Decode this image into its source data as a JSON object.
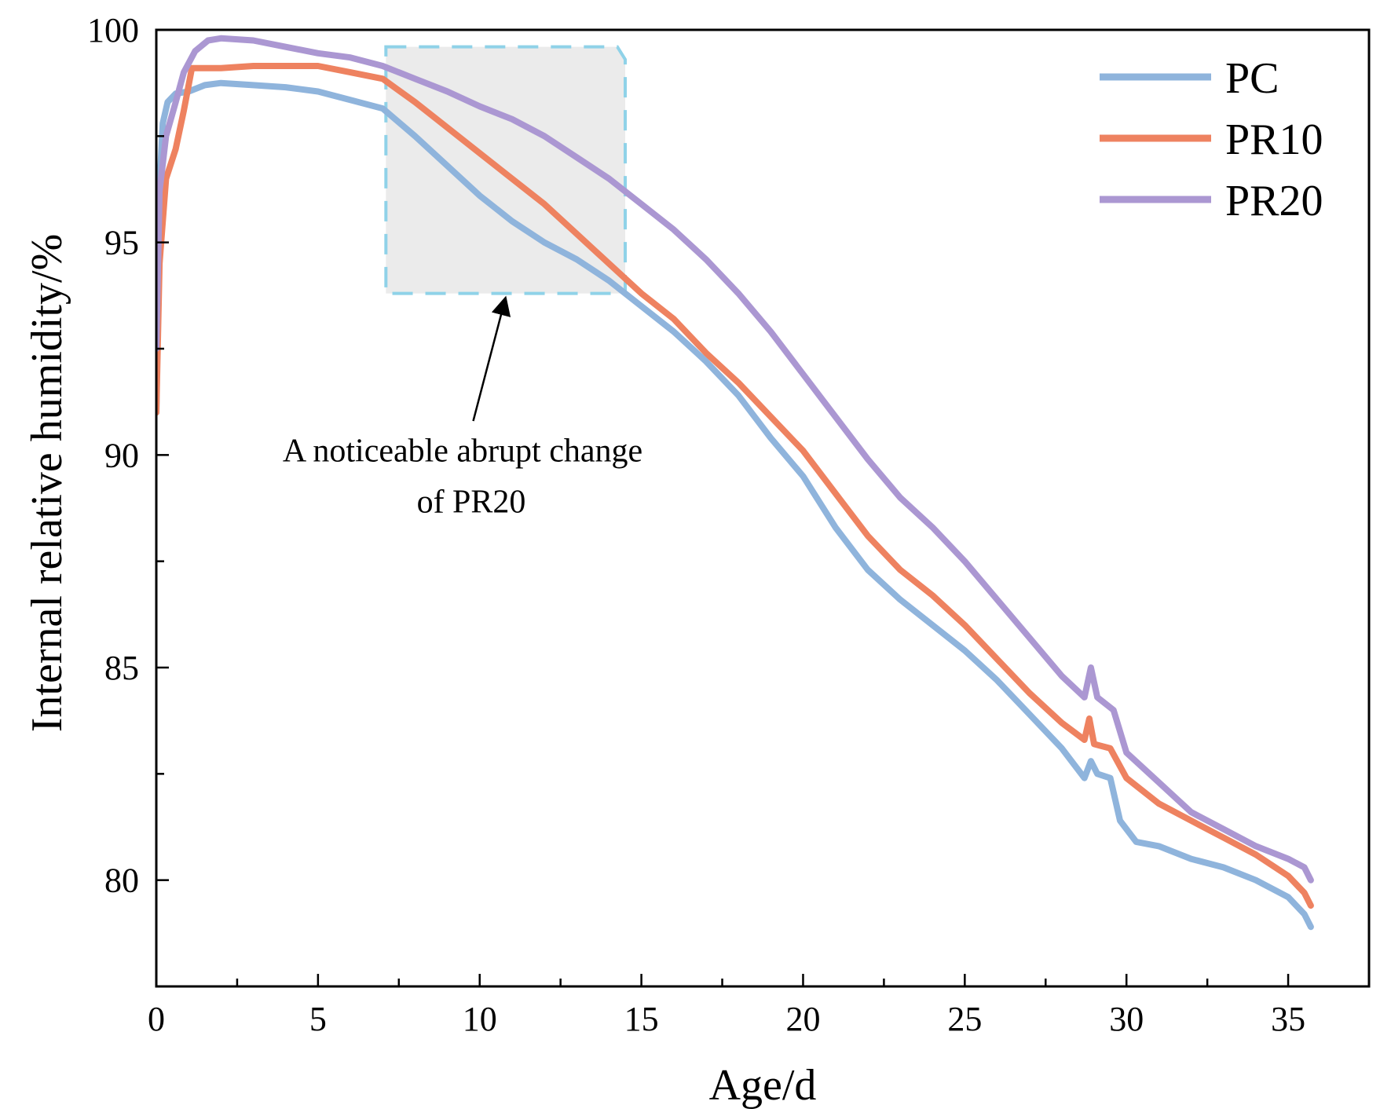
{
  "chart_data": {
    "type": "line",
    "xlabel": "Age/d",
    "ylabel": "Internal relative humidity/%",
    "xlim": [
      0,
      37.5
    ],
    "ylim": [
      77.5,
      100
    ],
    "xticks": [
      0,
      5,
      10,
      15,
      20,
      25,
      30,
      35
    ],
    "yticks": [
      80,
      85,
      90,
      95,
      100
    ],
    "grid": false,
    "legend_position": "top-right",
    "series": [
      {
        "name": "PC",
        "color": "#8fb4dc",
        "points": [
          [
            0,
            91
          ],
          [
            0.08,
            96
          ],
          [
            0.2,
            97.8
          ],
          [
            0.35,
            98.3
          ],
          [
            0.6,
            98.5
          ],
          [
            1,
            98.55
          ],
          [
            1.5,
            98.7
          ],
          [
            2,
            98.75
          ],
          [
            3,
            98.7
          ],
          [
            4,
            98.65
          ],
          [
            5,
            98.55
          ],
          [
            6,
            98.35
          ],
          [
            7,
            98.15
          ],
          [
            8,
            97.5
          ],
          [
            9,
            96.8
          ],
          [
            10,
            96.1
          ],
          [
            11,
            95.5
          ],
          [
            12,
            95
          ],
          [
            13,
            94.6
          ],
          [
            14,
            94.1
          ],
          [
            15,
            93.5
          ],
          [
            16,
            92.9
          ],
          [
            17,
            92.2
          ],
          [
            18,
            91.4
          ],
          [
            19,
            90.4
          ],
          [
            20,
            89.5
          ],
          [
            21,
            88.3
          ],
          [
            22,
            87.3
          ],
          [
            23,
            86.6
          ],
          [
            24,
            86
          ],
          [
            25,
            85.4
          ],
          [
            26,
            84.7
          ],
          [
            27,
            83.9
          ],
          [
            28,
            83.1
          ],
          [
            28.7,
            82.4
          ],
          [
            28.9,
            82.8
          ],
          [
            29.1,
            82.5
          ],
          [
            29.5,
            82.4
          ],
          [
            29.8,
            81.4
          ],
          [
            30.3,
            80.9
          ],
          [
            31,
            80.8
          ],
          [
            32,
            80.5
          ],
          [
            33,
            80.3
          ],
          [
            34,
            80
          ],
          [
            35,
            79.6
          ],
          [
            35.5,
            79.2
          ],
          [
            35.7,
            78.9
          ]
        ]
      },
      {
        "name": "PR10",
        "color": "#ee8260",
        "points": [
          [
            0,
            91
          ],
          [
            0.1,
            94.5
          ],
          [
            0.3,
            96.5
          ],
          [
            0.6,
            97.2
          ],
          [
            0.85,
            98.1
          ],
          [
            1.1,
            99.1
          ],
          [
            2,
            99.1
          ],
          [
            3,
            99.15
          ],
          [
            4,
            99.15
          ],
          [
            5,
            99.15
          ],
          [
            6,
            99
          ],
          [
            7,
            98.85
          ],
          [
            8,
            98.3
          ],
          [
            9,
            97.7
          ],
          [
            10,
            97.1
          ],
          [
            11,
            96.5
          ],
          [
            12,
            95.9
          ],
          [
            13,
            95.2
          ],
          [
            14,
            94.5
          ],
          [
            15,
            93.8
          ],
          [
            16,
            93.2
          ],
          [
            17,
            92.4
          ],
          [
            18,
            91.7
          ],
          [
            19,
            90.9
          ],
          [
            20,
            90.1
          ],
          [
            21,
            89.1
          ],
          [
            22,
            88.1
          ],
          [
            23,
            87.3
          ],
          [
            24,
            86.7
          ],
          [
            25,
            86
          ],
          [
            26,
            85.2
          ],
          [
            27,
            84.4
          ],
          [
            28,
            83.7
          ],
          [
            28.7,
            83.3
          ],
          [
            28.85,
            83.8
          ],
          [
            29,
            83.2
          ],
          [
            29.5,
            83.1
          ],
          [
            30,
            82.4
          ],
          [
            31,
            81.8
          ],
          [
            32,
            81.4
          ],
          [
            33,
            81
          ],
          [
            34,
            80.6
          ],
          [
            35,
            80.1
          ],
          [
            35.5,
            79.7
          ],
          [
            35.7,
            79.4
          ]
        ]
      },
      {
        "name": "PR20",
        "color": "#ab97d2",
        "points": [
          [
            0,
            92.5
          ],
          [
            0.1,
            96.2
          ],
          [
            0.3,
            97.5
          ],
          [
            0.6,
            98.3
          ],
          [
            0.85,
            99
          ],
          [
            1.2,
            99.5
          ],
          [
            1.6,
            99.75
          ],
          [
            2,
            99.8
          ],
          [
            3,
            99.75
          ],
          [
            4,
            99.6
          ],
          [
            5,
            99.45
          ],
          [
            6,
            99.35
          ],
          [
            7,
            99.15
          ],
          [
            8,
            98.85
          ],
          [
            9,
            98.55
          ],
          [
            10,
            98.2
          ],
          [
            11,
            97.9
          ],
          [
            12,
            97.5
          ],
          [
            13,
            97
          ],
          [
            14,
            96.5
          ],
          [
            15,
            95.9
          ],
          [
            16,
            95.3
          ],
          [
            17,
            94.6
          ],
          [
            18,
            93.8
          ],
          [
            19,
            92.9
          ],
          [
            20,
            91.9
          ],
          [
            21,
            90.9
          ],
          [
            22,
            89.9
          ],
          [
            23,
            89
          ],
          [
            24,
            88.3
          ],
          [
            25,
            87.5
          ],
          [
            26,
            86.6
          ],
          [
            27,
            85.7
          ],
          [
            28,
            84.8
          ],
          [
            28.7,
            84.3
          ],
          [
            28.9,
            85
          ],
          [
            29.1,
            84.3
          ],
          [
            29.6,
            84
          ],
          [
            30,
            83
          ],
          [
            31,
            82.3
          ],
          [
            32,
            81.6
          ],
          [
            33,
            81.2
          ],
          [
            34,
            80.8
          ],
          [
            35,
            80.5
          ],
          [
            35.5,
            80.3
          ],
          [
            35.7,
            80
          ]
        ]
      }
    ],
    "annotation": {
      "text_line1": "A noticeable abrupt change",
      "text_line2": "of PR20",
      "region_x": [
        7.1,
        14.5
      ],
      "region_y": [
        93.8,
        99.6
      ],
      "box_fill": "#ebebeb",
      "box_stroke": "#8fd2e8",
      "arrow_tip": [
        10.8,
        93.7
      ],
      "arrow_tail": [
        9.8,
        90.8
      ]
    }
  }
}
